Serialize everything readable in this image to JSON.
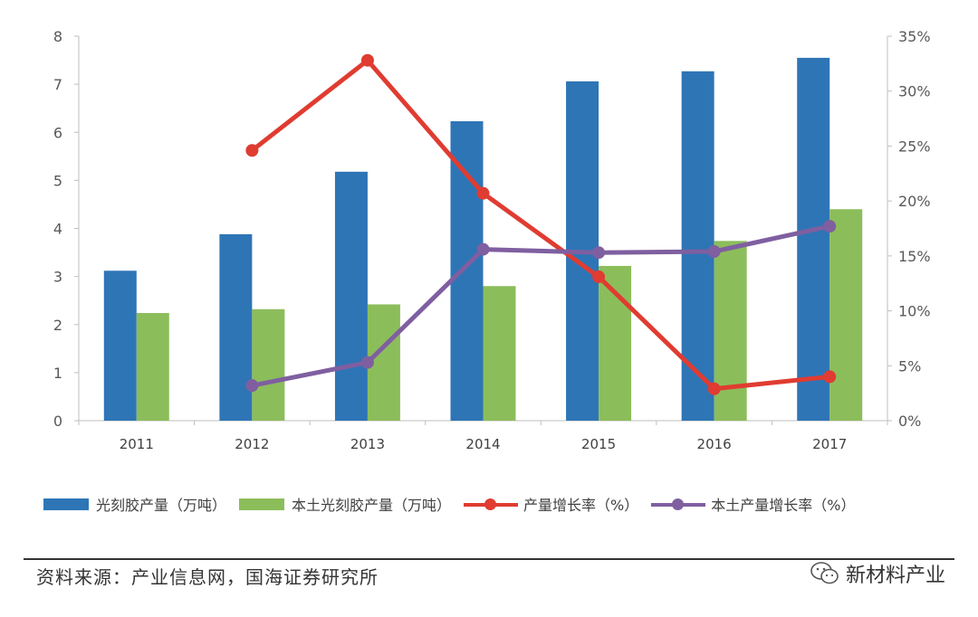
{
  "chart_data": {
    "type": "bar",
    "categories": [
      "2011",
      "2012",
      "2013",
      "2014",
      "2015",
      "2016",
      "2017"
    ],
    "ylim_left": [
      0,
      8
    ],
    "yticks_left": [
      "0",
      "1",
      "2",
      "3",
      "4",
      "5",
      "6",
      "7",
      "8"
    ],
    "ylim_right": [
      0,
      35
    ],
    "yticks_right": [
      "0%",
      "5%",
      "10%",
      "15%",
      "20%",
      "25%",
      "30%",
      "35%"
    ],
    "grid": false,
    "legend_position": "bottom",
    "series": [
      {
        "name": "光刻胶产量（万吨）",
        "kind": "bar",
        "axis": "left",
        "color": "#2e75b6",
        "values": [
          3.12,
          3.88,
          5.18,
          6.23,
          7.06,
          7.27,
          7.55
        ]
      },
      {
        "name": "本土光刻胶产量（万吨）",
        "kind": "bar",
        "axis": "left",
        "color": "#8cbd5b",
        "values": [
          2.24,
          2.32,
          2.42,
          2.8,
          3.22,
          3.74,
          4.4
        ]
      },
      {
        "name": "产量增长率（%）",
        "kind": "line",
        "axis": "right",
        "color": "#e03c31",
        "values": [
          null,
          24.6,
          32.8,
          20.7,
          13.1,
          2.9,
          4.0
        ]
      },
      {
        "name": "本土产量增长率（%）",
        "kind": "line",
        "axis": "right",
        "color": "#7f5fa0",
        "values": [
          null,
          3.2,
          5.3,
          15.6,
          15.3,
          15.4,
          17.7
        ]
      }
    ]
  },
  "source_text": "资料来源：产业信息网，国海证券研究所",
  "watermark_text": "新材料产业",
  "watermark_icon": "wechat-icon"
}
